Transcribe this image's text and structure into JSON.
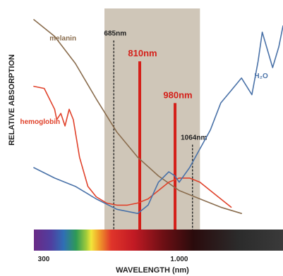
{
  "chart_data": {
    "type": "line",
    "ylabel": "RELATIVE ABSORPTION",
    "xlabel": "WAVELENGTH (nm)",
    "x_ticks": [
      {
        "value": 300,
        "label": "300"
      },
      {
        "value": 1000,
        "label": "1.000"
      }
    ],
    "highlight_band": {
      "x_start": 640,
      "x_end": 1100
    },
    "wavelength_markers": [
      {
        "label": "685nm",
        "x": 685,
        "style": "dashed",
        "color": "#222222",
        "top": 0.88
      },
      {
        "label": "810nm",
        "x": 810,
        "style": "solid",
        "color": "#d4201a",
        "top": 0.78
      },
      {
        "label": "980nm",
        "x": 980,
        "style": "solid",
        "color": "#d4201a",
        "top": 0.58
      },
      {
        "label": "1064nm",
        "x": 1064,
        "style": "dashed",
        "color": "#222222",
        "top": 0.38
      }
    ],
    "series": [
      {
        "name": "melanin",
        "color": "#8a6d4e",
        "x": [
          300,
          400,
          500,
          600,
          700,
          800,
          900,
          1000,
          1100,
          1200,
          1300
        ],
        "y": [
          0.98,
          0.9,
          0.77,
          0.6,
          0.44,
          0.32,
          0.23,
          0.16,
          0.12,
          0.08,
          0.05
        ]
      },
      {
        "name": "hemoglobin",
        "color": "#e0412a",
        "x": [
          300,
          350,
          400,
          410,
          430,
          450,
          470,
          490,
          520,
          560,
          600,
          650,
          700,
          750,
          800,
          850,
          900,
          950,
          1000,
          1050,
          1100,
          1150,
          1200,
          1250
        ],
        "y": [
          0.66,
          0.65,
          0.55,
          0.5,
          0.53,
          0.47,
          0.55,
          0.5,
          0.32,
          0.18,
          0.13,
          0.1,
          0.09,
          0.09,
          0.1,
          0.12,
          0.16,
          0.2,
          0.22,
          0.22,
          0.2,
          0.16,
          0.12,
          0.08
        ]
      },
      {
        "name": "H₂O",
        "color": "#4a72a8",
        "x": [
          300,
          400,
          500,
          600,
          700,
          800,
          850,
          900,
          950,
          980,
          1000,
          1050,
          1100,
          1150,
          1200,
          1250,
          1300,
          1350,
          1380,
          1400,
          1450,
          1480,
          1500
        ],
        "y": [
          0.27,
          0.22,
          0.18,
          0.12,
          0.07,
          0.05,
          0.09,
          0.2,
          0.25,
          0.23,
          0.2,
          0.27,
          0.36,
          0.45,
          0.58,
          0.64,
          0.7,
          0.62,
          0.78,
          0.92,
          0.75,
          0.85,
          0.95
        ]
      }
    ],
    "series_labels": [
      {
        "text": "melanin",
        "color": "#8a6d4e",
        "at_x": 440,
        "at_y": 0.88
      },
      {
        "text": "hemoglobin",
        "color": "#e0412a",
        "at_x": 330,
        "at_y": 0.48
      },
      {
        "text": "H₂O",
        "color": "#4a72a8",
        "at_x": 1395,
        "at_y": 0.7
      }
    ],
    "spectrum_bar": true,
    "grid": false,
    "legend": "none"
  }
}
